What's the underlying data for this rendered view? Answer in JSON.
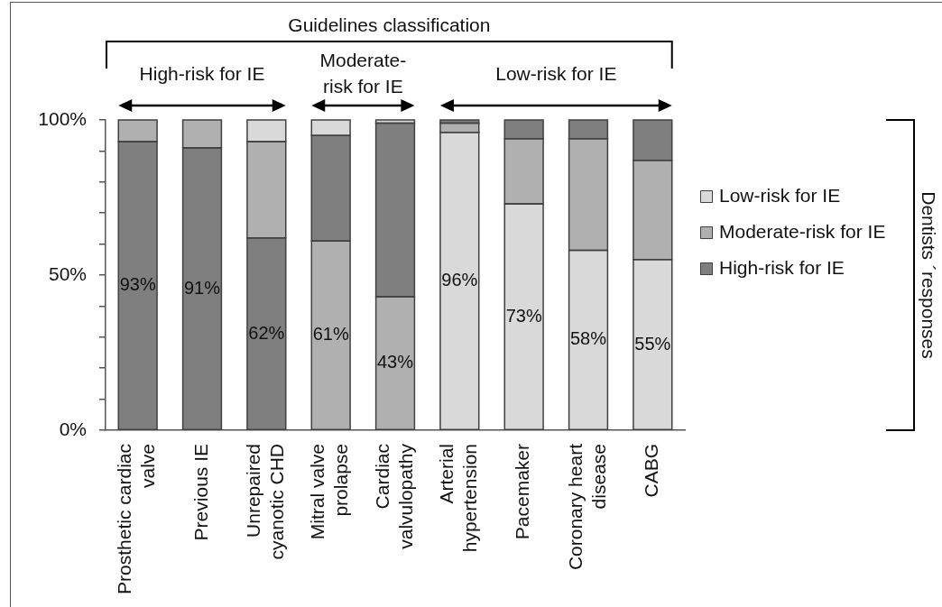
{
  "chart_data": {
    "type": "bar",
    "stacked": true,
    "categories": [
      "Prosthetic cardiac valve",
      "Previous IE",
      "Unrepaired cyanotic CHD",
      "Mitral valve prolapse",
      "Cardiac valvulopathy",
      "Arterial hypertension",
      "Pacemaker",
      "Coronary heart disease",
      "CABG"
    ],
    "series": [
      {
        "name": "Low-risk for IE",
        "color": "#d9d9d9",
        "values": [
          null,
          null,
          null,
          null,
          null,
          96,
          73,
          58,
          55
        ],
        "value_labels": [
          null,
          null,
          null,
          null,
          null,
          "96%",
          "73%",
          "58%",
          "55%"
        ]
      },
      {
        "color": "#7f7f7f",
        "values": [
          93,
          91,
          62,
          null,
          null,
          null,
          null,
          null,
          null
        ],
        "value_labels": [
          "93%",
          "91%",
          "62%",
          null,
          null,
          null,
          null,
          null,
          null
        ]
      },
      {
        "name": "Moderate-risk for IE",
        "color": "#b0b0b0",
        "values": [
          7,
          9,
          31,
          61,
          43,
          3,
          21,
          36,
          32
        ],
        "value_labels": [
          null,
          null,
          null,
          "61%",
          "43%",
          null,
          null,
          null,
          null
        ]
      },
      {
        "name": "High-risk for IE",
        "color": "#7f7f7f",
        "values": [
          null,
          null,
          null,
          34,
          56,
          1,
          6,
          6,
          13
        ]
      },
      {
        "color": "#d9d9d9",
        "values": [
          null,
          null,
          7,
          5,
          1,
          null,
          null,
          null,
          null
        ]
      }
    ],
    "ylim": [
      0,
      100
    ],
    "yticks": [
      {
        "value": 0,
        "label": "0%"
      },
      {
        "value": 10,
        "label": null
      },
      {
        "value": 20,
        "label": null
      },
      {
        "value": 30,
        "label": null
      },
      {
        "value": 40,
        "label": null
      },
      {
        "value": 50,
        "label": "50%"
      },
      {
        "value": 60,
        "label": null
      },
      {
        "value": 70,
        "label": null
      },
      {
        "value": 80,
        "label": null
      },
      {
        "value": 90,
        "label": null
      },
      {
        "value": 100,
        "label": "100%"
      }
    ],
    "grid": false,
    "legend": "right",
    "legend_title": "Dentists ´responses",
    "annotations": [
      "Guidelines classification",
      "High-risk for IE",
      "Moderate-risk for IE",
      "Low-risk for IE"
    ]
  }
}
